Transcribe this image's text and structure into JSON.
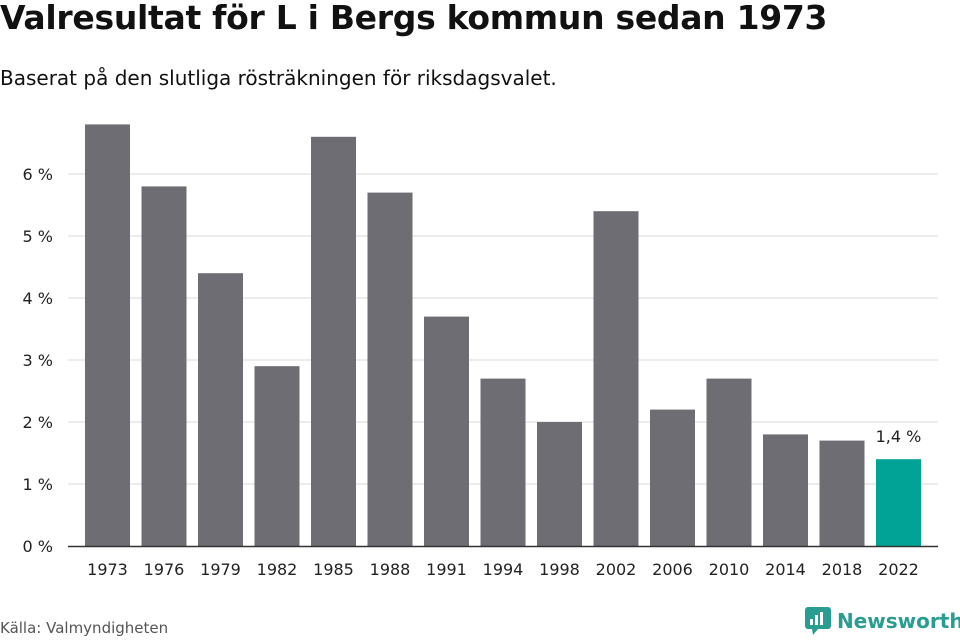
{
  "header": {
    "title": "Valresultat för L i Bergs kommun sedan 1973",
    "subtitle": "Baserat på den slutliga rösträkningen för riksdagsvalet."
  },
  "footer": {
    "source": "Källa: Valmyndigheten",
    "brand": "Newsworthy",
    "brand_icon": "newsworthy-logo-icon"
  },
  "colors": {
    "bar": "#6e6d73",
    "highlight": "#00a396",
    "grid": "#d9d9d9",
    "axis": "#333333",
    "brand": "#2a9d92"
  },
  "chart_data": {
    "type": "bar",
    "title": "Valresultat för L i Bergs kommun sedan 1973",
    "subtitle": "Baserat på den slutliga rösträkningen för riksdagsvalet.",
    "xlabel": "",
    "ylabel": "",
    "categories": [
      "1973",
      "1976",
      "1979",
      "1982",
      "1985",
      "1988",
      "1991",
      "1994",
      "1998",
      "2002",
      "2006",
      "2010",
      "2014",
      "2018",
      "2022"
    ],
    "values": [
      6.8,
      5.8,
      4.4,
      2.9,
      6.6,
      5.7,
      3.7,
      2.7,
      2.0,
      5.4,
      2.2,
      2.7,
      1.8,
      1.7,
      1.4
    ],
    "ylim": [
      0,
      7.0
    ],
    "yticks": [
      {
        "value": 0,
        "label": "0 %"
      },
      {
        "value": 1,
        "label": "1 %"
      },
      {
        "value": 2,
        "label": "2 %"
      },
      {
        "value": 3,
        "label": "3 %"
      },
      {
        "value": 4,
        "label": "4 %"
      },
      {
        "value": 5,
        "label": "5 %"
      },
      {
        "value": 6,
        "label": "6 %"
      }
    ],
    "highlight_index": 14,
    "data_labels": [
      {
        "index": 14,
        "text": "1,4 %"
      }
    ],
    "grid": true,
    "legend": "none"
  }
}
